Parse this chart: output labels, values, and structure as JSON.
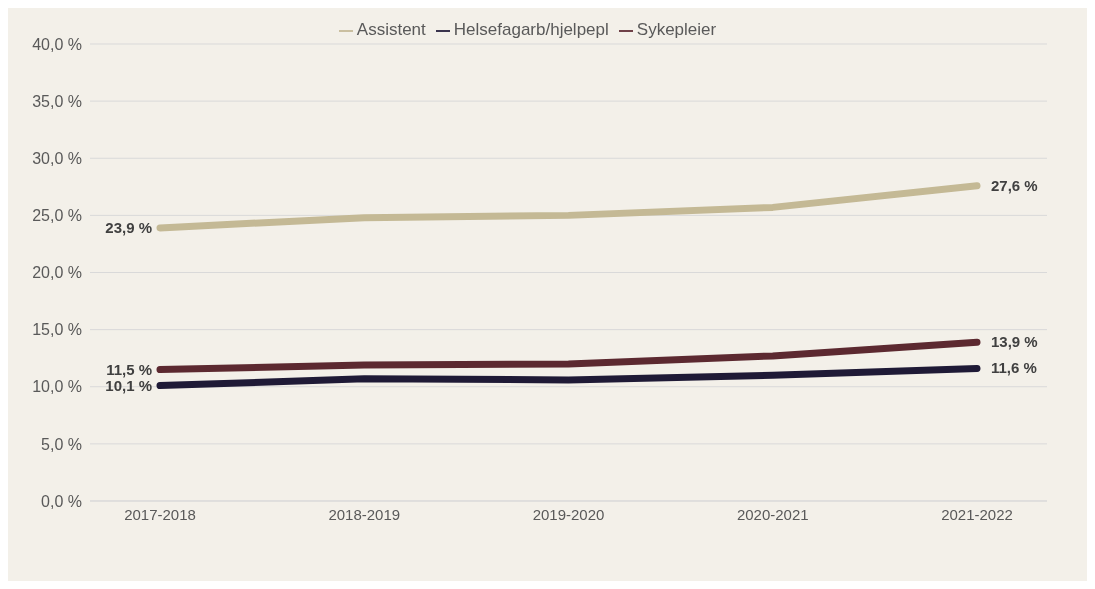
{
  "chart_data": {
    "type": "line",
    "categories": [
      "2017-2018",
      "2018-2019",
      "2019-2020",
      "2020-2021",
      "2021-2022"
    ],
    "series": [
      {
        "name": "Assistent",
        "color": "#c4b995",
        "values": [
          23.9,
          24.8,
          25.0,
          25.7,
          27.6
        ],
        "value_labels": [
          "23,9 %",
          null,
          null,
          null,
          "27,6 %"
        ]
      },
      {
        "name": "Helsefagarb/hjelpepl",
        "color": "#1f1a36",
        "values": [
          10.1,
          10.7,
          10.6,
          11.0,
          11.6
        ],
        "value_labels": [
          "10,1 %",
          null,
          null,
          null,
          "11,6 %"
        ]
      },
      {
        "name": "Sykepleier",
        "color": "#5c2930",
        "values": [
          11.5,
          11.9,
          12.0,
          12.7,
          13.9
        ],
        "value_labels": [
          "11,5 %",
          null,
          null,
          null,
          "13,9 %"
        ]
      }
    ],
    "ylim": [
      0,
      40
    ],
    "yticks": [
      {
        "value": 0,
        "label": "0,0 %"
      },
      {
        "value": 5,
        "label": "5,0 %"
      },
      {
        "value": 10,
        "label": "10,0 %"
      },
      {
        "value": 15,
        "label": "15,0 %"
      },
      {
        "value": 20,
        "label": "20,0 %"
      },
      {
        "value": 25,
        "label": "25,0 %"
      },
      {
        "value": 30,
        "label": "30,0 %"
      },
      {
        "value": 35,
        "label": "35,0 %"
      },
      {
        "value": 40,
        "label": "40,0 %"
      }
    ],
    "grid": "y",
    "legend": "top",
    "marker": "none",
    "line_style": "solid"
  }
}
